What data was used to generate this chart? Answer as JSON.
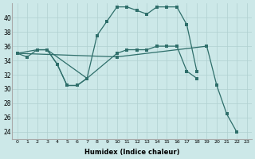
{
  "xlabel": "Humidex (Indice chaleur)",
  "bg_color": "#cce8e8",
  "line_color": "#2e6e6a",
  "grid_color": "#b0d0d0",
  "xlim": [
    -0.5,
    23.5
  ],
  "ylim": [
    23,
    42
  ],
  "yticks": [
    24,
    26,
    28,
    30,
    32,
    34,
    36,
    38,
    40
  ],
  "xticks": [
    0,
    1,
    2,
    3,
    4,
    5,
    6,
    7,
    8,
    9,
    10,
    11,
    12,
    13,
    14,
    15,
    16,
    17,
    18,
    19,
    20,
    21,
    22,
    23
  ],
  "lines": [
    {
      "x": [
        0,
        1,
        2,
        3,
        4,
        5,
        6,
        7,
        8,
        9,
        10,
        11,
        12,
        13,
        14,
        15,
        16,
        17,
        18
      ],
      "y": [
        35.0,
        34.5,
        35.5,
        35.5,
        33.5,
        30.5,
        30.5,
        31.5,
        37.5,
        39.5,
        41.5,
        41.5,
        41.0,
        40.5,
        41.5,
        41.5,
        41.5,
        39.0,
        32.5
      ]
    },
    {
      "x": [
        0,
        2,
        3,
        7,
        10,
        11,
        12,
        13,
        14,
        15,
        16,
        17,
        18
      ],
      "y": [
        35.0,
        35.5,
        35.5,
        31.5,
        35.0,
        35.5,
        35.5,
        35.5,
        36.0,
        36.0,
        36.0,
        32.5,
        31.5
      ]
    },
    {
      "x": [
        3,
        4,
        5,
        6,
        7
      ],
      "y": [
        35.5,
        33.5,
        30.5,
        30.5,
        31.5
      ]
    },
    {
      "x": [
        0,
        10,
        19,
        20,
        21,
        22
      ],
      "y": [
        35.0,
        34.5,
        36.0,
        30.5,
        26.5,
        24.0
      ]
    }
  ]
}
